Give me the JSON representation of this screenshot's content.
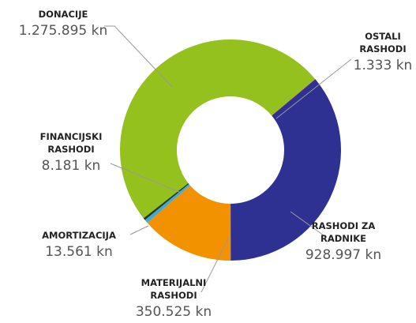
{
  "chart_data": {
    "type": "donut",
    "categories": [
      "DONACIJE",
      "OSTALI RASHODI",
      "RASHODI ZA RADNIKE",
      "MATERIJALNI RASHODI",
      "AMORTIZACIJA",
      "FINANCIJSKI RASHODI"
    ],
    "values": [
      1275895,
      1333,
      928997,
      350525,
      13561,
      8181
    ],
    "value_labels": [
      "1.275.895 kn",
      "1.333 kn",
      "928.997 kn",
      "350.525 kn",
      "13.561 kn",
      "8.181 kn"
    ],
    "colors": [
      "#95c11f",
      "#c8197c",
      "#2e3192",
      "#f39200",
      "#3fa9d8",
      "#1f3d1a"
    ]
  }
}
